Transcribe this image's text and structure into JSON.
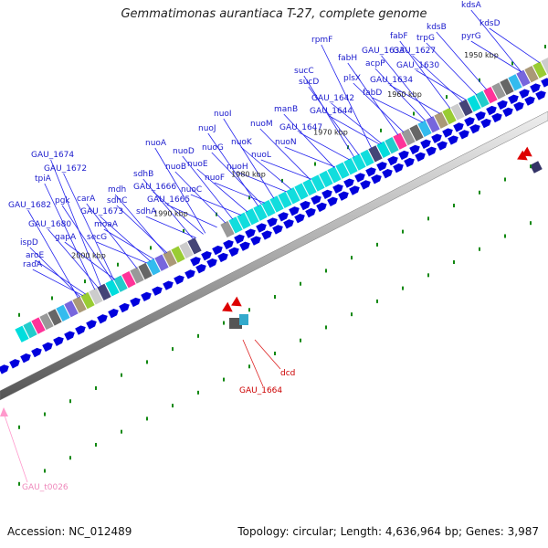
{
  "title": "Gemmatimonas aurantiaca T-27, complete genome",
  "footer": {
    "accession": "Accession: NC_012489",
    "info": "Topology: circular; Length: 4,636,964 bp; Genes: 3,987"
  },
  "colors": {
    "gene_label": "#1a1acc",
    "highlight_label": "#cc0000",
    "trna_label": "#ee88bb",
    "forward_arrow": "#0000dd",
    "reverse_arrow": "#dd0000"
  },
  "ticks": [
    "1950 kbp",
    "1960 kbp",
    "1970 kbp",
    "1980 kbp",
    "1990 kbp",
    "2000 kbp"
  ],
  "gene_labels": [
    "kdsA",
    "kdsD",
    "kdsB",
    "pyrG",
    "trpG",
    "GAU_1627",
    "fabF",
    "rpmF",
    "GAU_1633",
    "fabH",
    "GAU_1630",
    "acpP",
    "sucC",
    "plsX",
    "GAU_1634",
    "sucD",
    "fabD",
    "GAU_1642",
    "manB",
    "GAU_1644",
    "nuoI",
    "GAU_1647",
    "nuoJ",
    "nuoM",
    "nuoK",
    "nuoN",
    "nuoA",
    "nuoG",
    "nuoL",
    "nuoD",
    "nuoE",
    "nuoH",
    "nuoB",
    "nuoF",
    "nuoC",
    "GAU_1674",
    "GAU_1672",
    "sdhB",
    "tpiA",
    "mdh",
    "GAU_1666",
    "pgk",
    "carA",
    "sdhC",
    "GAU_1665",
    "GAU_1682",
    "GAU_1673",
    "sdhA",
    "moaA",
    "GAU_1680",
    "gapA",
    "secG",
    "ispD",
    "aroE",
    "radA"
  ],
  "highlight_labels": [
    "dcd",
    "GAU_1664"
  ],
  "trna_labels": [
    "GAU_t0026"
  ]
}
